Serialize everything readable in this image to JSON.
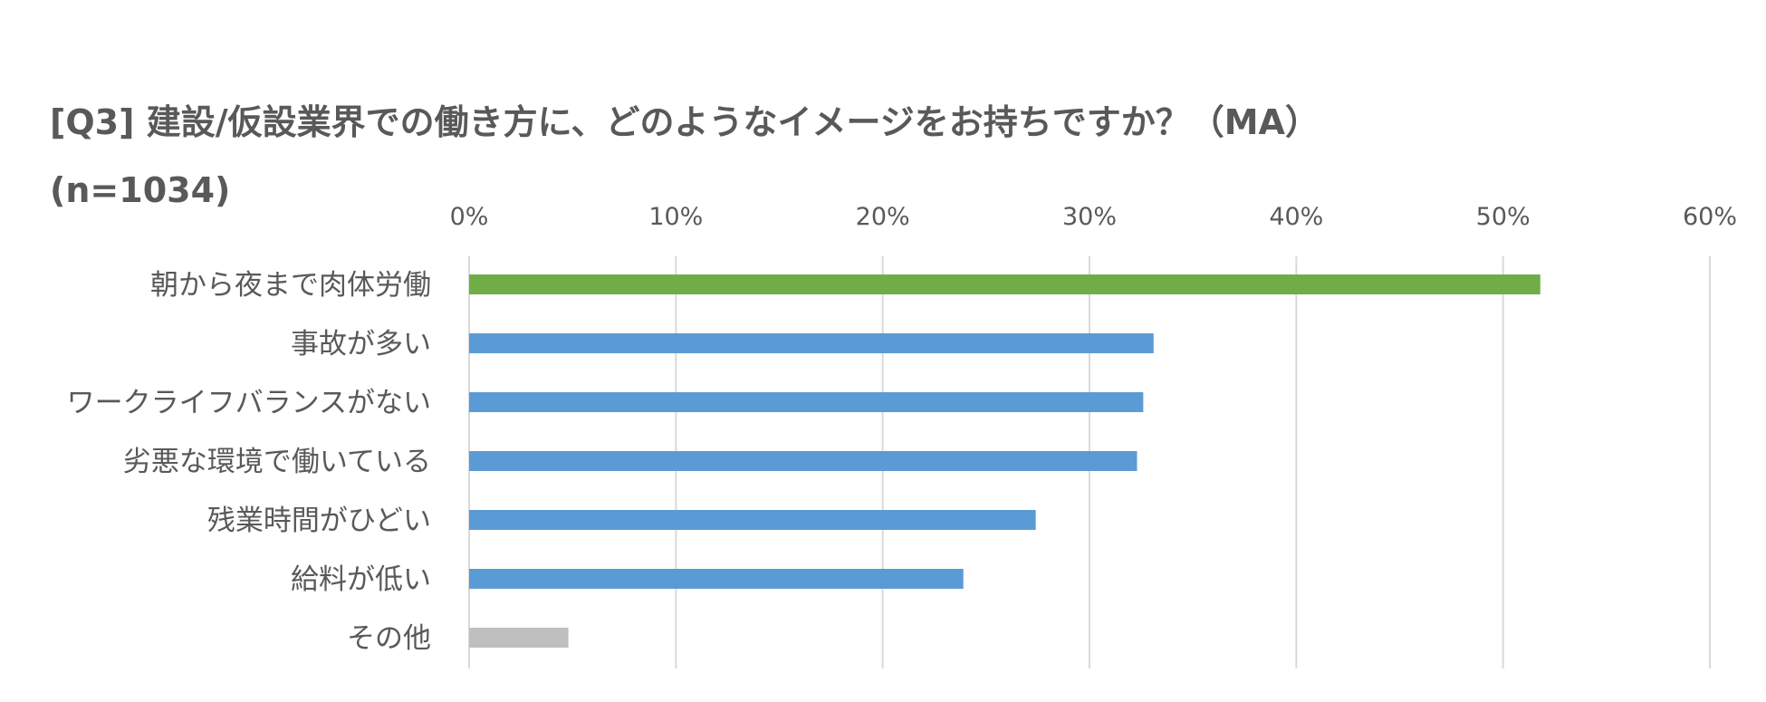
{
  "chart_data": {
    "type": "bar",
    "orientation": "horizontal",
    "title": "[Q3] 建設/仮設業界での働き方に、どのようなイメージをお持ちですか？（MA）",
    "subtitle": "(n=1034)",
    "categories": [
      "朝から夜まで肉体労働",
      "事故が多い",
      "ワークライフバランスがない",
      "劣悪な環境で働いている",
      "残業時間がひどい",
      "給料が低い",
      "その他"
    ],
    "values": [
      51.8,
      33.1,
      32.6,
      32.3,
      27.4,
      23.9,
      4.8
    ],
    "bar_colors": [
      "#70AD47",
      "#5B9BD5",
      "#5B9BD5",
      "#5B9BD5",
      "#5B9BD5",
      "#5B9BD5",
      "#BFBFBF"
    ],
    "xlim": [
      0,
      60
    ],
    "x_ticks": [
      "0%",
      "10%",
      "20%",
      "30%",
      "40%",
      "50%",
      "60%"
    ],
    "x_tick_values": [
      0,
      10,
      20,
      30,
      40,
      50,
      60
    ],
    "x_axis_position": "top",
    "grid": true,
    "gridline_color": "#D9D9D9",
    "legend": "none"
  }
}
